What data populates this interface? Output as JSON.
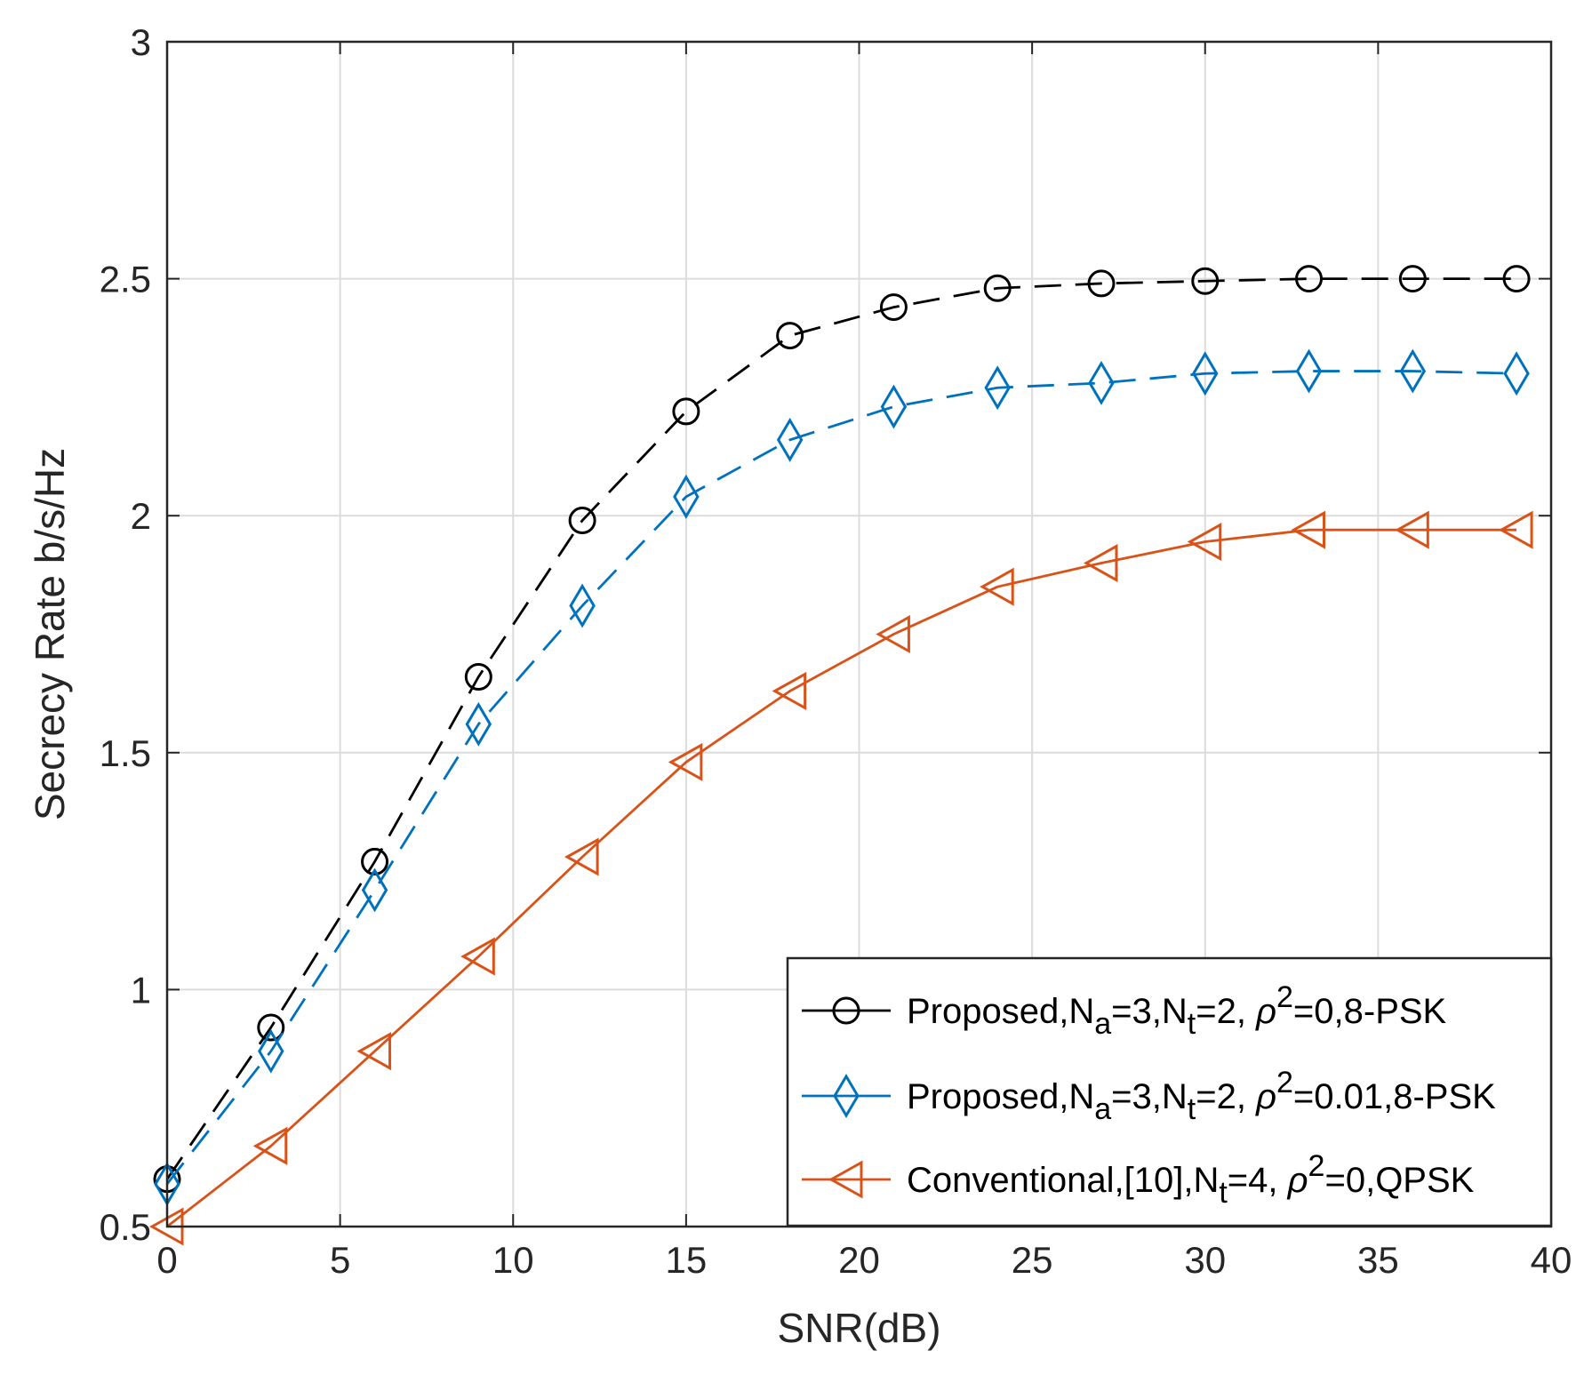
{
  "chart_data": {
    "type": "line",
    "title": "",
    "xlabel": "SNR(dB)",
    "ylabel": "Secrecy Rate b/s/Hz",
    "xlim": [
      0,
      40
    ],
    "ylim": [
      0.5,
      3
    ],
    "xticks": [
      "0",
      "5",
      "10",
      "15",
      "20",
      "25",
      "30",
      "35",
      "40"
    ],
    "yticks": [
      "0.5",
      "1",
      "1.5",
      "2",
      "2.5",
      "3"
    ],
    "grid": true,
    "legend_position": "bottom-right",
    "x": [
      0,
      3,
      6,
      9,
      12,
      15,
      18,
      21,
      24,
      27,
      30,
      33,
      36,
      39
    ],
    "series": [
      {
        "name": "Proposed,Na=3,Nt=2,ρ2=0,8-PSK",
        "legend": {
          "main": "Proposed,N",
          "sub1": "a",
          "mid": "=3,N",
          "sub2": "t",
          "pre_rho": "=2, ",
          "rho": "ρ",
          "sup": "2",
          "post": "=0,8-PSK"
        },
        "color": "#000000",
        "marker": "circle",
        "dash": true,
        "values": [
          0.6,
          0.92,
          1.27,
          1.66,
          1.99,
          2.22,
          2.38,
          2.44,
          2.48,
          2.49,
          2.495,
          2.5,
          2.5,
          2.5
        ]
      },
      {
        "name": "Proposed,Na=3,Nt=2,ρ2=0.01,8-PSK",
        "legend": {
          "main": "Proposed,N",
          "sub1": "a",
          "mid": "=3,N",
          "sub2": "t",
          "pre_rho": "=2, ",
          "rho": "ρ",
          "sup": "2",
          "post": "=0.01,8-PSK"
        },
        "color": "#0072BD",
        "marker": "diamond",
        "dash": true,
        "values": [
          0.59,
          0.87,
          1.21,
          1.56,
          1.81,
          2.04,
          2.16,
          2.23,
          2.27,
          2.28,
          2.3,
          2.305,
          2.305,
          2.3
        ]
      },
      {
        "name": "Conventional,[10],Nt=4,ρ2=0,QPSK",
        "legend": {
          "main": "Conventional,[10],N",
          "sub1": "t",
          "mid": "",
          "sub2": "",
          "pre_rho": "=4, ",
          "rho": "ρ",
          "sup": "2",
          "post": "=0,QPSK"
        },
        "color": "#D95319",
        "marker": "triangle-left",
        "dash": false,
        "values": [
          0.5,
          0.67,
          0.87,
          1.07,
          1.28,
          1.48,
          1.63,
          1.75,
          1.85,
          1.9,
          1.945,
          1.97,
          1.97,
          1.97
        ]
      }
    ]
  }
}
